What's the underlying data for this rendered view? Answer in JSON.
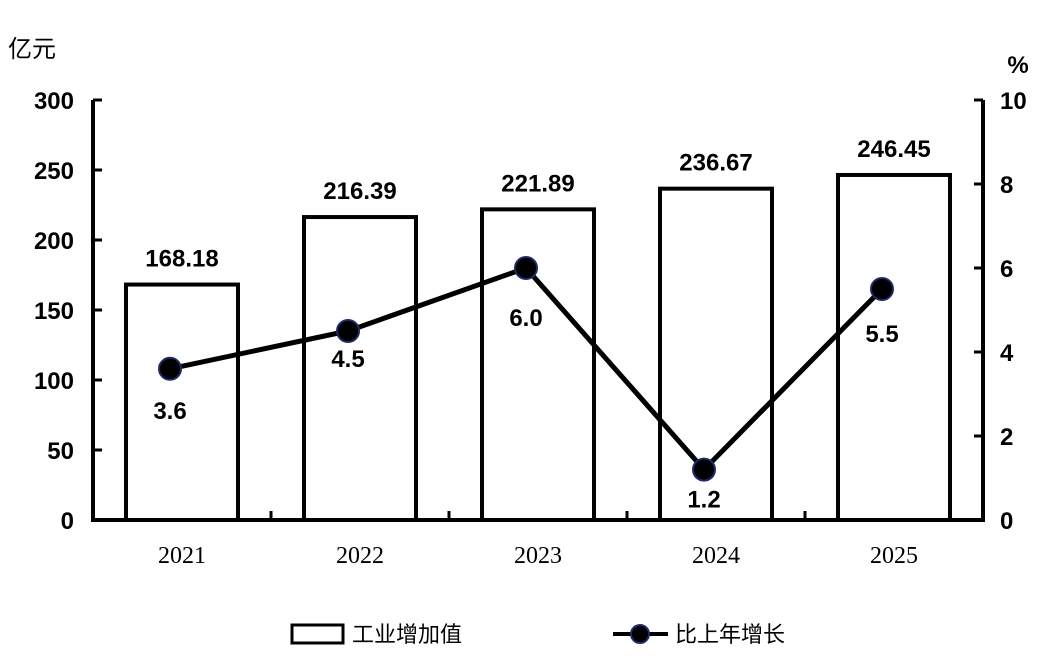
{
  "chart_data": {
    "type": "bar",
    "categories": [
      "2021",
      "2022",
      "2023",
      "2024",
      "2025"
    ],
    "series": [
      {
        "name": "工业增加值",
        "type": "bar",
        "axis": "left",
        "values": [
          168.18,
          216.39,
          221.89,
          236.67,
          246.45
        ],
        "labels": [
          "168.18",
          "216.39",
          "221.89",
          "236.67",
          "246.45"
        ]
      },
      {
        "name": "比上年增长",
        "type": "line",
        "axis": "right",
        "values": [
          3.6,
          4.5,
          6.0,
          1.2,
          5.5
        ],
        "labels": [
          "3.6",
          "4.5",
          "6.0",
          "1.2",
          "5.5"
        ]
      }
    ],
    "left_axis": {
      "unit": "亿元",
      "ylim": [
        0,
        300
      ],
      "ticks": [
        0,
        50,
        100,
        150,
        200,
        250,
        300
      ]
    },
    "right_axis": {
      "unit": "%",
      "ylim": [
        0,
        10
      ],
      "ticks": [
        0,
        2,
        4,
        6,
        8,
        10
      ]
    },
    "grid": false,
    "legend_position": "bottom"
  }
}
